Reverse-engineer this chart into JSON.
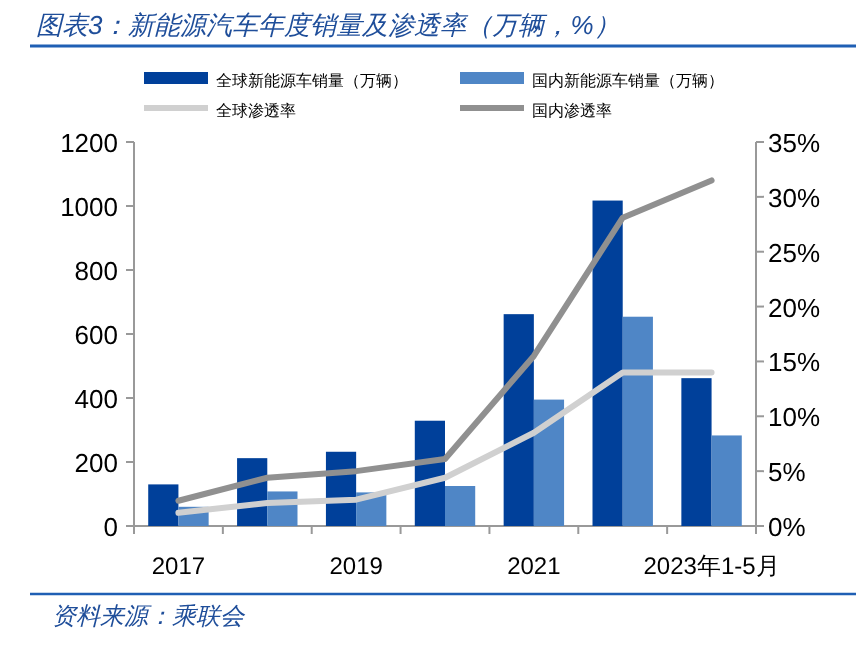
{
  "chart_data": {
    "type": "bar",
    "title": "图表3：新能源汽车年度销量及渗透率（万辆，%）",
    "categories": [
      "2017",
      null,
      "2019",
      null,
      "2021",
      null,
      "2023年1-5月"
    ],
    "series": [
      {
        "name": "全球新能源车销量（万辆）",
        "color": "#00409a",
        "values": [
          130,
          212,
          232,
          329,
          662,
          1017,
          462
        ]
      },
      {
        "name": "国内新能源车销量（万辆）",
        "color": "#4f86c6",
        "values": [
          60,
          108,
          105,
          125,
          395,
          654,
          283
        ]
      },
      {
        "name": "全球渗透率",
        "type": "line",
        "axis": "y2",
        "color": "#d0d0d0",
        "values": [
          1.2,
          2.1,
          2.4,
          4.4,
          8.5,
          14.0,
          14.0
        ]
      },
      {
        "name": "国内渗透率",
        "type": "line",
        "axis": "y2",
        "color": "#909090",
        "values": [
          2.3,
          4.4,
          5.0,
          6.1,
          15.5,
          28.1,
          31.5
        ]
      }
    ],
    "ylim": [
      0,
      1200
    ],
    "yticks": [
      0,
      200,
      400,
      600,
      800,
      1000,
      1200
    ],
    "y2lim": [
      0,
      35
    ],
    "y2ticks": [
      {
        "value": 0,
        "label": "0%"
      },
      {
        "value": 5,
        "label": "5%"
      },
      {
        "value": 10,
        "label": "10%"
      },
      {
        "value": 15,
        "label": "15%"
      },
      {
        "value": 20,
        "label": "20%"
      },
      {
        "value": 25,
        "label": "25%"
      },
      {
        "value": 30,
        "label": "30%"
      },
      {
        "value": 35,
        "label": "35%"
      }
    ],
    "legend": "top",
    "grid": false,
    "annotations": [
      "资料来源：乘联会"
    ]
  }
}
